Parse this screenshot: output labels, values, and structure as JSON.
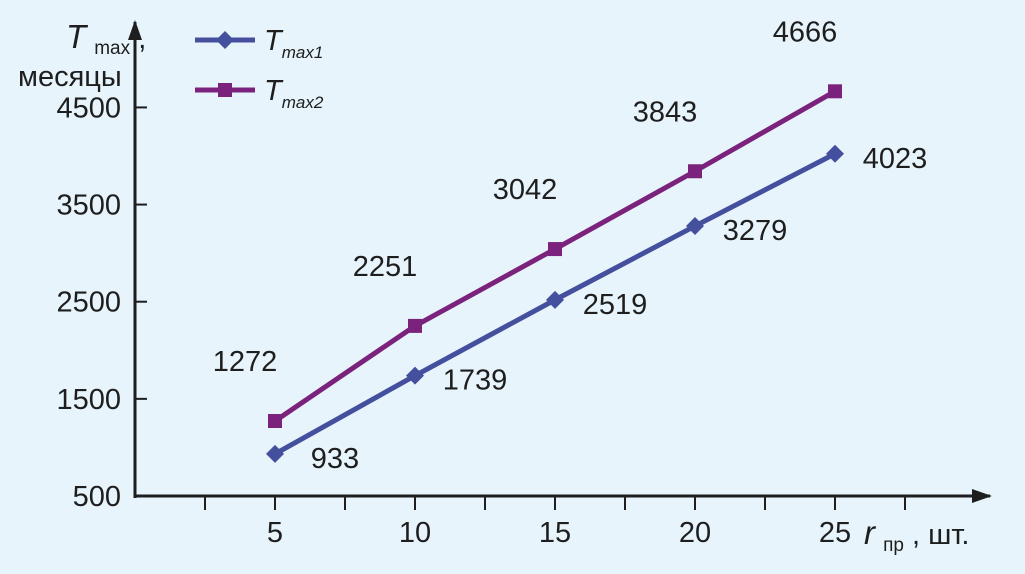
{
  "chart_data": {
    "type": "line",
    "x": [
      5,
      10,
      15,
      20,
      25
    ],
    "xlim": [
      0,
      30
    ],
    "ylim": [
      500,
      5400
    ],
    "x_ticks": [
      5,
      10,
      15,
      20,
      25
    ],
    "y_ticks": [
      500,
      1500,
      2500,
      3500,
      4500
    ],
    "xlabel": {
      "var": "r",
      "sub": "пр",
      "unit": ", шт."
    },
    "ylabel": {
      "var": "T",
      "sub": "max",
      "line1_suffix": ",",
      "line2": "месяцы"
    },
    "legend_position": "top-left",
    "series": [
      {
        "name": "Tmax1",
        "name_var": "T",
        "name_sub": "max1",
        "color": "#44509e",
        "marker": "diamond",
        "values": [
          933,
          1739,
          2519,
          3279,
          4023
        ]
      },
      {
        "name": "Tmax2",
        "name_var": "T",
        "name_sub": "max2",
        "color": "#7b237c",
        "marker": "square",
        "values": [
          1272,
          2251,
          3042,
          3843,
          4666
        ]
      }
    ]
  }
}
